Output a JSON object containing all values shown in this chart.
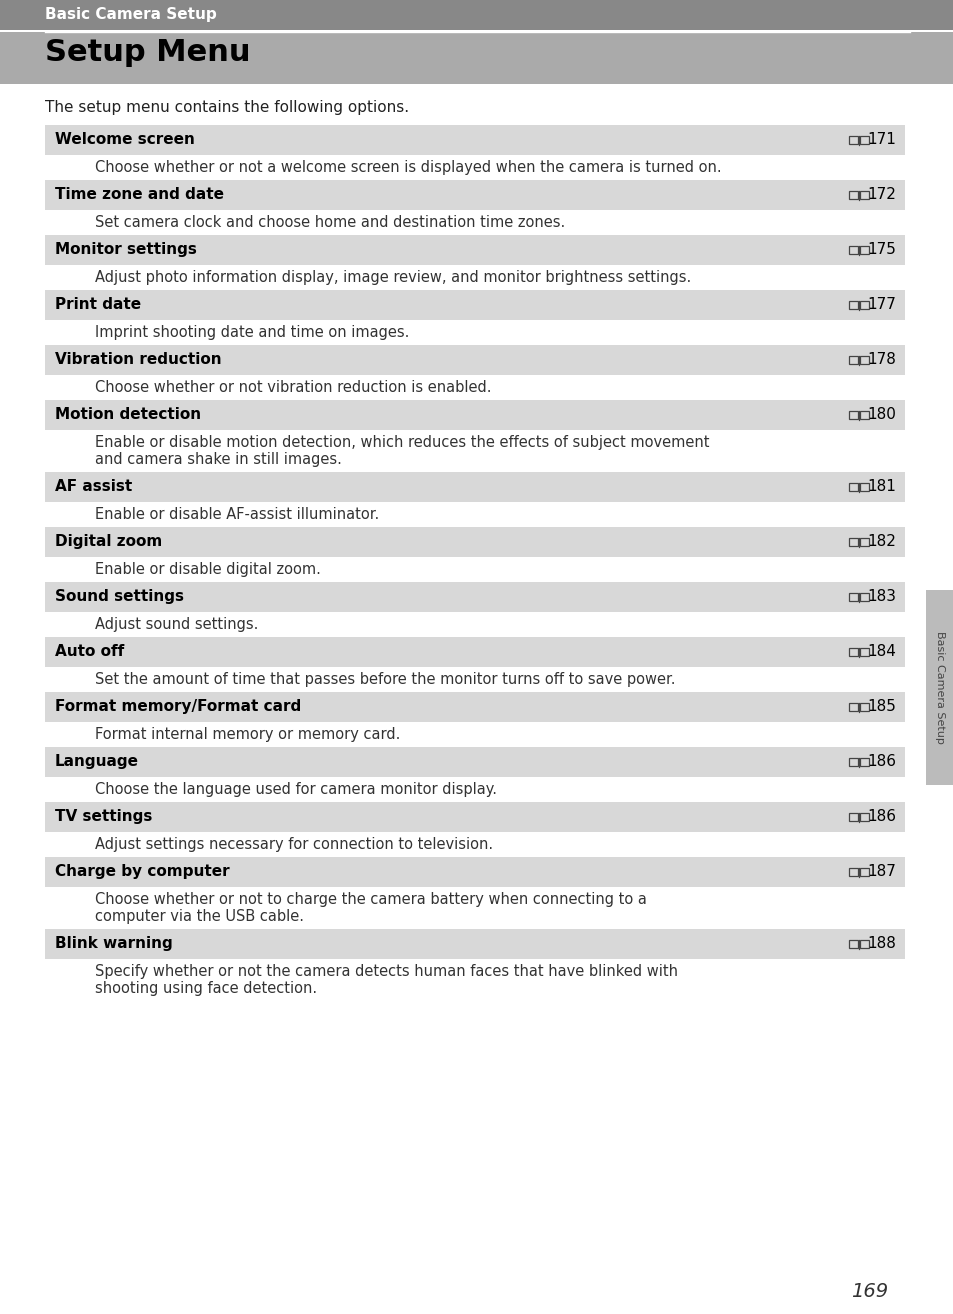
{
  "page_bg": "#ffffff",
  "top_band_bg": "#888888",
  "title_band_bg": "#aaaaaa",
  "header_small_text": "Basic Camera Setup",
  "header_small_color": "#ffffff",
  "title_text": "Setup Menu",
  "title_text_color": "#000000",
  "intro_text": "The setup menu contains the following options.",
  "row_bg": "#d8d8d8",
  "row_text_color": "#000000",
  "desc_text_color": "#333333",
  "sidebar_text": "Basic Camera Setup",
  "sidebar_bg": "#bbbbbb",
  "page_number": "169",
  "divider_color": "#ffffff",
  "entries": [
    {
      "title": "Welcome screen",
      "page_ref": "171",
      "description": [
        "Choose whether or not a welcome screen is displayed when the camera is turned on."
      ]
    },
    {
      "title": "Time zone and date",
      "page_ref": "172",
      "description": [
        "Set camera clock and choose home and destination time zones."
      ]
    },
    {
      "title": "Monitor settings",
      "page_ref": "175",
      "description": [
        "Adjust photo information display, image review, and monitor brightness settings."
      ]
    },
    {
      "title": "Print date",
      "page_ref": "177",
      "description": [
        "Imprint shooting date and time on images."
      ]
    },
    {
      "title": "Vibration reduction",
      "page_ref": "178",
      "description": [
        "Choose whether or not vibration reduction is enabled."
      ]
    },
    {
      "title": "Motion detection",
      "page_ref": "180",
      "description": [
        "Enable or disable motion detection, which reduces the effects of subject movement",
        "and camera shake in still images."
      ]
    },
    {
      "title": "AF assist",
      "page_ref": "181",
      "description": [
        "Enable or disable AF-assist illuminator."
      ]
    },
    {
      "title": "Digital zoom",
      "page_ref": "182",
      "description": [
        "Enable or disable digital zoom."
      ]
    },
    {
      "title": "Sound settings",
      "page_ref": "183",
      "description": [
        "Adjust sound settings."
      ]
    },
    {
      "title": "Auto off",
      "page_ref": "184",
      "description": [
        "Set the amount of time that passes before the monitor turns off to save power."
      ]
    },
    {
      "title": "Format memory/Format card",
      "page_ref": "185",
      "description": [
        "Format internal memory or memory card."
      ]
    },
    {
      "title": "Language",
      "page_ref": "186",
      "description": [
        "Choose the language used for camera monitor display."
      ]
    },
    {
      "title": "TV settings",
      "page_ref": "186",
      "description": [
        "Adjust settings necessary for connection to television."
      ]
    },
    {
      "title": "Charge by computer",
      "page_ref": "187",
      "description": [
        "Choose whether or not to charge the camera battery when connecting to a",
        "computer via the USB cable."
      ]
    },
    {
      "title": "Blink warning",
      "page_ref": "188",
      "description": [
        "Specify whether or not the camera detects human faces that have blinked with",
        "shooting using face detection."
      ]
    }
  ]
}
